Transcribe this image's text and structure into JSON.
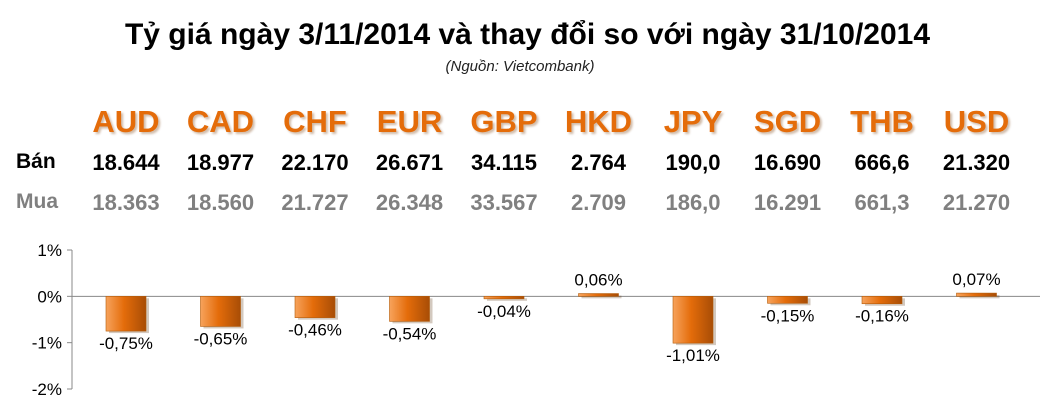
{
  "title": "Tỷ giá ngày 3/11/2014 và thay đổi so với ngày 31/10/2014",
  "source": "(Nguồn: Vietcombank)",
  "row_labels": {
    "sell": "Bán",
    "buy": "Mua"
  },
  "currencies": [
    "AUD",
    "CAD",
    "CHF",
    "EUR",
    "GBP",
    "HKD",
    "JPY",
    "SGD",
    "THB",
    "USD"
  ],
  "sell_rates": [
    "18.644",
    "18.977",
    "22.170",
    "26.671",
    "34.115",
    "2.764",
    "190,0",
    "16.690",
    "666,6",
    "21.320"
  ],
  "buy_rates": [
    "18.363",
    "18.560",
    "21.727",
    "26.348",
    "33.567",
    "2.709",
    "186,0",
    "16.291",
    "661,3",
    "21.270"
  ],
  "colors": {
    "accent": "#e46c0a",
    "bar": "#e46c0a",
    "sell": "#000000",
    "buy": "#808080"
  },
  "chart_data": {
    "type": "bar",
    "categories": [
      "AUD",
      "CAD",
      "CHF",
      "EUR",
      "GBP",
      "HKD",
      "JPY",
      "SGD",
      "THB",
      "USD"
    ],
    "values": [
      -0.75,
      -0.65,
      -0.46,
      -0.54,
      -0.04,
      0.06,
      -1.01,
      -0.15,
      -0.16,
      0.07
    ],
    "data_labels": [
      "-0,75%",
      "-0,65%",
      "-0,46%",
      "-0,54%",
      "-0,04%",
      "0,06%",
      "-1,01%",
      "-0,15%",
      "-0,16%",
      "0,07%"
    ],
    "ylim": [
      -2,
      1
    ],
    "yticks": [
      1,
      0,
      -1,
      -2
    ],
    "ytick_labels": [
      "1%",
      "0%",
      "-1%",
      "-2%"
    ],
    "grid": false,
    "legend": "none"
  }
}
